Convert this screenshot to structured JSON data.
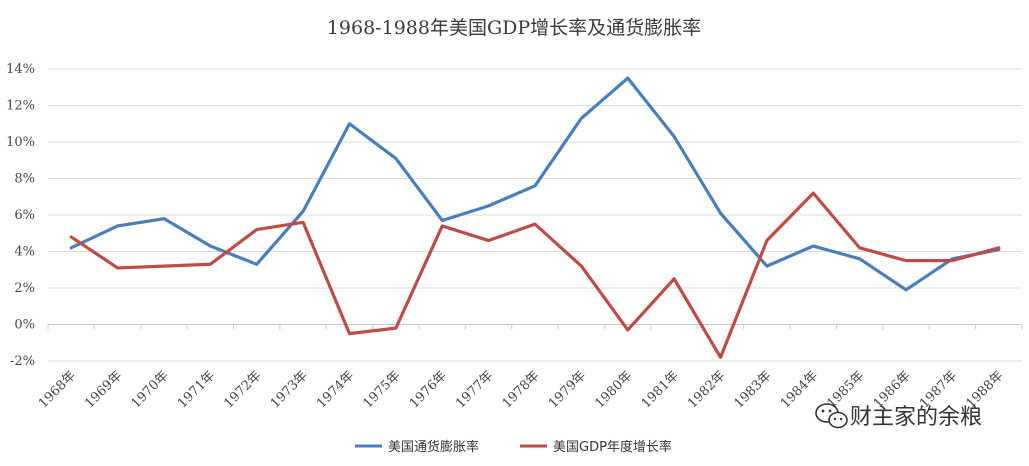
{
  "chart_data": {
    "type": "line",
    "title": "1968-1988年美国GDP增长率及通货膨胀率",
    "categories": [
      "1968年",
      "1969年",
      "1970年",
      "1971年",
      "1972年",
      "1973年",
      "1974年",
      "1975年",
      "1976年",
      "1977年",
      "1978年",
      "1979年",
      "1980年",
      "1981年",
      "1982年",
      "1983年",
      "1984年",
      "1985年",
      "1986年",
      "1987年",
      "1988年"
    ],
    "series": [
      {
        "name": "美国通货膨胀率",
        "color": "#4a7ebb",
        "values": [
          4.2,
          5.4,
          5.8,
          4.3,
          3.3,
          6.2,
          11.0,
          9.1,
          5.7,
          6.5,
          7.6,
          11.3,
          13.5,
          10.3,
          6.1,
          3.2,
          4.3,
          3.6,
          1.9,
          3.6,
          4.1
        ]
      },
      {
        "name": "美国GDP年度增长率",
        "color": "#be4b48",
        "values": [
          4.8,
          3.1,
          3.2,
          3.3,
          5.2,
          5.6,
          -0.5,
          -0.2,
          5.4,
          4.6,
          5.5,
          3.2,
          -0.3,
          2.5,
          -1.8,
          4.6,
          7.2,
          4.2,
          3.5,
          3.5,
          4.2
        ]
      }
    ],
    "ylim": [
      -2,
      14
    ],
    "yticks": [
      "-2%",
      "0%",
      "2%",
      "4%",
      "6%",
      "8%",
      "10%",
      "12%",
      "14%"
    ],
    "grid": true,
    "legend_position": "bottom"
  },
  "watermark": {
    "text": "财主家的余粮",
    "icon": "wechat-icon"
  }
}
